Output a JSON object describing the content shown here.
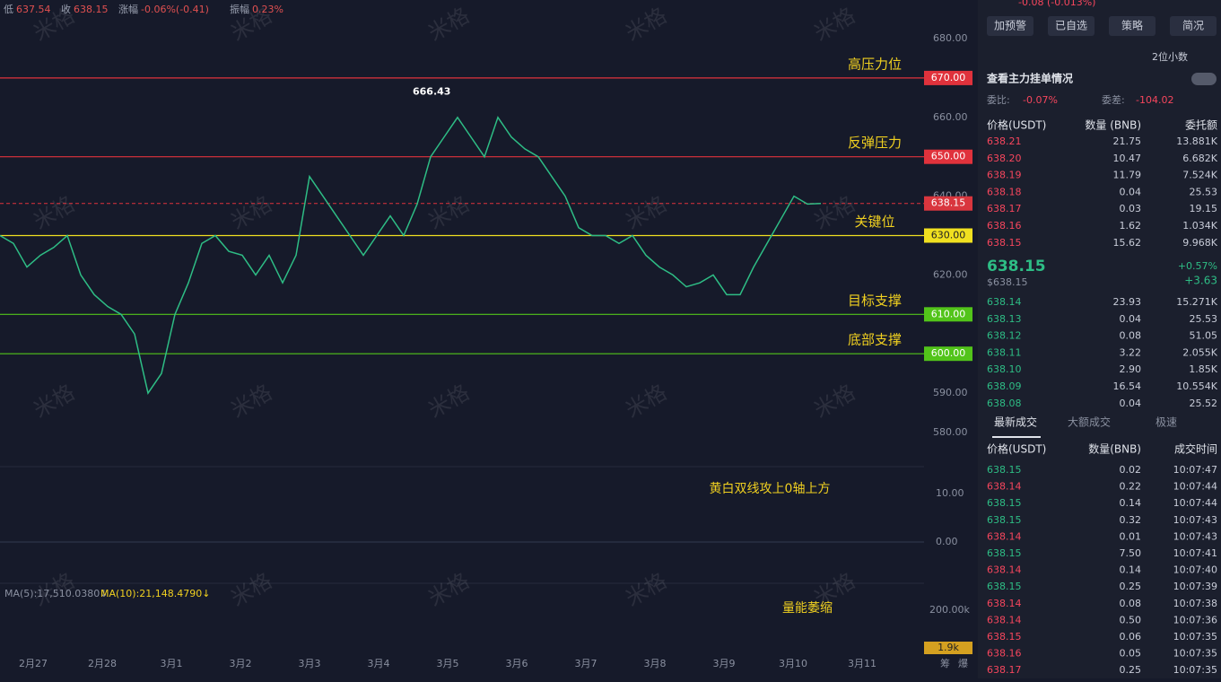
{
  "topbar": {
    "items": [
      {
        "label": "低",
        "value": "637.54"
      },
      {
        "label": "收",
        "value": "638.15"
      },
      {
        "label": "涨幅",
        "value": "-0.06%(-0.41)"
      },
      {
        "label": "振幅",
        "value": "0.23%"
      }
    ]
  },
  "watermark": "米格",
  "chart": {
    "yticks": [
      {
        "value": 680,
        "label": "680.00"
      },
      {
        "value": 660,
        "label": "660.00"
      },
      {
        "value": 640,
        "label": "640.00"
      },
      {
        "value": 620,
        "label": "620.00"
      },
      {
        "value": 590,
        "label": "590.00"
      },
      {
        "value": 580,
        "label": "580.00"
      }
    ],
    "levels": [
      {
        "value": 670,
        "label": "670.00",
        "name": "高压力位",
        "color": "#e0323c"
      },
      {
        "value": 650,
        "label": "650.00",
        "name": "反弹压力",
        "color": "#e0323c"
      },
      {
        "value": 630,
        "label": "630.00",
        "name": "关键位",
        "color": "#f0e020"
      },
      {
        "value": 610,
        "label": "610.00",
        "name": "目标支撑",
        "color": "#52c41a"
      },
      {
        "value": 600,
        "label": "600.00",
        "name": "底部支撑",
        "color": "#52c41a"
      }
    ],
    "current": {
      "value": 638.15,
      "label": "638.15"
    },
    "peak": {
      "value": 666.43,
      "label": "666.43"
    },
    "price": [
      630,
      628,
      622,
      625,
      627,
      630,
      620,
      615,
      612,
      610,
      605,
      590,
      595,
      610,
      618,
      628,
      630,
      626,
      625,
      620,
      625,
      618,
      625,
      645,
      640,
      635,
      630,
      625,
      630,
      635,
      630,
      638,
      650,
      655,
      660,
      655,
      650,
      660,
      655,
      652,
      650,
      645,
      640,
      632,
      630,
      630,
      628,
      630,
      625,
      622,
      620,
      617,
      618,
      620,
      615,
      615,
      622,
      628,
      634,
      640,
      638,
      638.15
    ],
    "dates": [
      "2月27",
      "2月28",
      "3月1",
      "3月2",
      "3月3",
      "3月4",
      "3月5",
      "3月6",
      "3月7",
      "3月8",
      "3月9",
      "3月10",
      "3月11"
    ],
    "macd_ticks": [
      {
        "value": 10,
        "label": "10.00"
      },
      {
        "value": 0,
        "label": "0.00"
      }
    ],
    "macd_note": "黄白双线攻上0轴上方",
    "ma_text": [
      "MA(5):17,510.0380↓",
      "MA(10):21,148.4790↓"
    ],
    "vol_tick": "200.00k",
    "vol_note": "量能萎缩",
    "vol_current": "1.9k",
    "corner": [
      "筹",
      "爆"
    ]
  },
  "panel": {
    "change": "-0.08 (-0.013%)",
    "buttons": [
      "加预警",
      "已自选",
      "策略",
      "简况"
    ],
    "decimals": "2位小数",
    "depth_title": "查看主力挂单情况",
    "ratio": {
      "label": "委比:",
      "value": "-0.07%"
    },
    "diff": {
      "label": "委差:",
      "value": "-104.02"
    },
    "book_header": [
      "价格(USDT)",
      "数量 (BNB)",
      "委托额"
    ],
    "asks": [
      [
        "638.21",
        "21.75",
        "13.881K"
      ],
      [
        "638.20",
        "10.47",
        "6.682K"
      ],
      [
        "638.19",
        "11.79",
        "7.524K"
      ],
      [
        "638.18",
        "0.04",
        "25.53"
      ],
      [
        "638.17",
        "0.03",
        "19.15"
      ],
      [
        "638.16",
        "1.62",
        "1.034K"
      ],
      [
        "638.15",
        "15.62",
        "9.968K"
      ]
    ],
    "mid": {
      "price": "638.15",
      "usd": "$638.15",
      "pct": "+0.57%",
      "chg": "+3.63"
    },
    "bids": [
      [
        "638.14",
        "23.93",
        "15.271K"
      ],
      [
        "638.13",
        "0.04",
        "25.53"
      ],
      [
        "638.12",
        "0.08",
        "51.05"
      ],
      [
        "638.11",
        "3.22",
        "2.055K"
      ],
      [
        "638.10",
        "2.90",
        "1.85K"
      ],
      [
        "638.09",
        "16.54",
        "10.554K"
      ],
      [
        "638.08",
        "0.04",
        "25.52"
      ]
    ],
    "tabs": [
      "最新成交",
      "大额成交",
      "极速"
    ],
    "trade_header": [
      "价格(USDT)",
      "数量(BNB)",
      "成交时间"
    ],
    "trades": [
      {
        "price": "638.15",
        "qty": "0.02",
        "time": "10:07:47",
        "color": "#2ebd85"
      },
      {
        "price": "638.14",
        "qty": "0.22",
        "time": "10:07:44",
        "color": "#f6465d"
      },
      {
        "price": "638.15",
        "qty": "0.14",
        "time": "10:07:44",
        "color": "#2ebd85"
      },
      {
        "price": "638.15",
        "qty": "0.32",
        "time": "10:07:43",
        "color": "#2ebd85"
      },
      {
        "price": "638.14",
        "qty": "0.01",
        "time": "10:07:43",
        "color": "#f6465d"
      },
      {
        "price": "638.15",
        "qty": "7.50",
        "time": "10:07:41",
        "color": "#2ebd85"
      },
      {
        "price": "638.14",
        "qty": "0.14",
        "time": "10:07:40",
        "color": "#f6465d"
      },
      {
        "price": "638.15",
        "qty": "0.25",
        "time": "10:07:39",
        "color": "#2ebd85"
      },
      {
        "price": "638.14",
        "qty": "0.08",
        "time": "10:07:38",
        "color": "#f6465d"
      },
      {
        "price": "638.14",
        "qty": "0.50",
        "time": "10:07:36",
        "color": "#f6465d"
      },
      {
        "price": "638.15",
        "qty": "0.06",
        "time": "10:07:35",
        "color": "#f6465d"
      },
      {
        "price": "638.16",
        "qty": "0.05",
        "time": "10:07:35",
        "color": "#f6465d"
      },
      {
        "price": "638.17",
        "qty": "0.25",
        "time": "10:07:35",
        "color": "#f6465d"
      }
    ]
  }
}
